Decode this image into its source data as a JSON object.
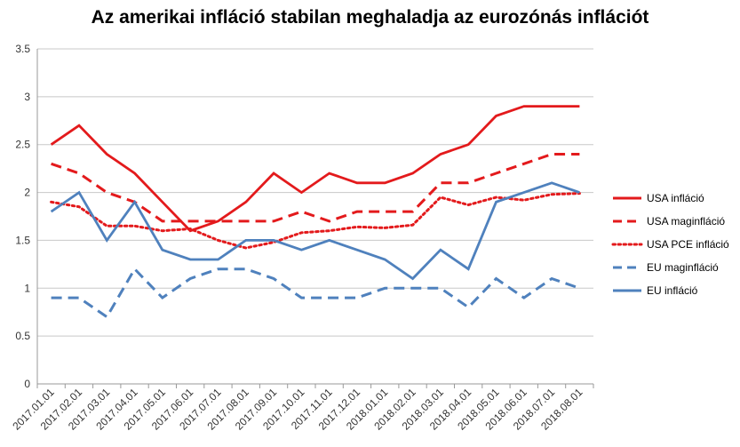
{
  "chart_data": {
    "type": "line",
    "title": "Az amerikai infláció stabilan meghaladja az eurozónás inflációt",
    "xlabel": "",
    "ylabel": "",
    "ylim": [
      0,
      3.5
    ],
    "yticks": [
      "0",
      "0.5",
      "1",
      "1.5",
      "2",
      "2.5",
      "3",
      "3.5"
    ],
    "grid": "horizontal",
    "legend_position": "right",
    "categories": [
      "2017.01.01",
      "2017.02.01",
      "2017.03.01",
      "2017.04.01",
      "2017.05.01",
      "2017.06.01",
      "2017.07.01",
      "2017.08.01",
      "2017.09.01",
      "2017.10.01",
      "2017.11.01",
      "2017.12.01",
      "2018.01.01",
      "2018.02.01",
      "2018.03.01",
      "2018.04.01",
      "2018.05.01",
      "2018.06.01",
      "2018.07.01",
      "2018.08.01"
    ],
    "series": [
      {
        "name": "USA infláció",
        "color": "#e31a1c",
        "style": "solid",
        "values": [
          2.5,
          2.7,
          2.4,
          2.2,
          1.9,
          1.6,
          1.7,
          1.9,
          2.2,
          2.0,
          2.2,
          2.1,
          2.1,
          2.2,
          2.4,
          2.5,
          2.8,
          2.9,
          2.9,
          2.9
        ]
      },
      {
        "name": "USA maginfláció",
        "color": "#e31a1c",
        "style": "dashed",
        "values": [
          2.3,
          2.2,
          2.0,
          1.9,
          1.7,
          1.7,
          1.7,
          1.7,
          1.7,
          1.8,
          1.7,
          1.8,
          1.8,
          1.8,
          2.1,
          2.1,
          2.2,
          2.3,
          2.4,
          2.4
        ]
      },
      {
        "name": "USA PCE  infláció",
        "color": "#e31a1c",
        "style": "dotted",
        "values": [
          1.9,
          1.85,
          1.65,
          1.65,
          1.6,
          1.62,
          1.5,
          1.42,
          1.48,
          1.58,
          1.6,
          1.64,
          1.63,
          1.66,
          1.95,
          1.87,
          1.95,
          1.92,
          1.98,
          1.99
        ]
      },
      {
        "name": "EU maginfláció",
        "color": "#4f81bd",
        "style": "dashed",
        "values": [
          0.9,
          0.9,
          0.7,
          1.2,
          0.9,
          1.1,
          1.2,
          1.2,
          1.1,
          0.9,
          0.9,
          0.9,
          1.0,
          1.0,
          1.0,
          0.8,
          1.1,
          0.9,
          1.1,
          1.0
        ]
      },
      {
        "name": "EU infláció",
        "color": "#4f81bd",
        "style": "solid",
        "values": [
          1.8,
          2.0,
          1.5,
          1.9,
          1.4,
          1.3,
          1.3,
          1.5,
          1.5,
          1.4,
          1.5,
          1.4,
          1.3,
          1.1,
          1.4,
          1.2,
          1.9,
          2.0,
          2.1,
          2.0
        ]
      }
    ]
  }
}
